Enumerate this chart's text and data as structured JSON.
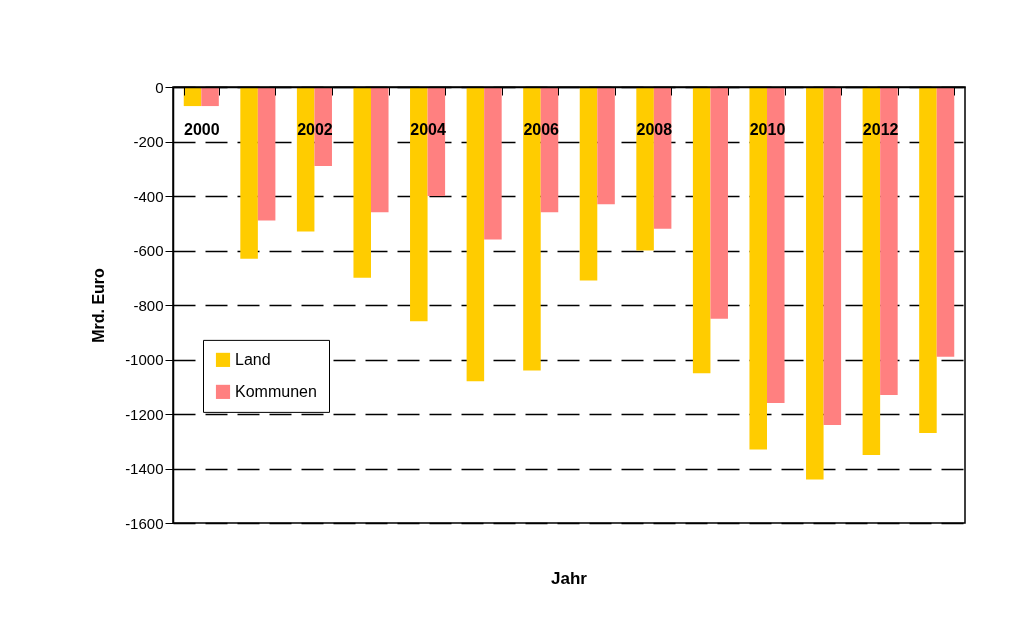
{
  "chart_data": {
    "type": "bar",
    "xlabel": "Jahr",
    "ylabel": "Mrd. Euro",
    "categories": [
      "2000",
      null,
      "2002",
      null,
      "2004",
      null,
      "2006",
      null,
      "2008",
      null,
      "2010",
      null,
      "2012",
      null
    ],
    "series": [
      {
        "name": "Land",
        "color": "#ffcc00",
        "values": [
          -70,
          -630,
          -530,
          -700,
          -860,
          -1080,
          -1040,
          -710,
          -600,
          -1050,
          -1330,
          -1440,
          -1350,
          -1270
        ]
      },
      {
        "name": "Kommunen",
        "color": "#ff8080",
        "values": [
          -70,
          -490,
          -290,
          -460,
          -400,
          -560,
          -460,
          -430,
          -520,
          -850,
          -1160,
          -1240,
          -1130,
          -990
        ]
      }
    ],
    "ylim": [
      -1600,
      0
    ],
    "yticks": [
      0,
      -200,
      -400,
      -600,
      -800,
      -1000,
      -1200,
      -1400,
      -1600
    ],
    "grid": "y",
    "legend": "left"
  }
}
